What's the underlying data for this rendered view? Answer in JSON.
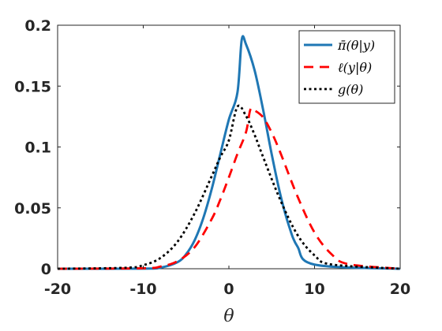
{
  "chart_data": {
    "type": "line",
    "xlabel": "θ",
    "ylabel": "",
    "xlim": [
      -20,
      20
    ],
    "ylim": [
      0,
      0.2
    ],
    "xticks": [
      "-20",
      "-10",
      "0",
      "10",
      "20"
    ],
    "yticks": [
      "0",
      "0.05",
      "0.1",
      "0.15",
      "0.2"
    ],
    "grid": false,
    "legend_position": "top-right",
    "series": [
      {
        "name": "π̄(θ|y)",
        "color": "#1f77b4",
        "style": "solid",
        "x": [
          -20,
          -10,
          -8,
          -6,
          -5,
          -4,
          -3,
          -2,
          -1,
          0,
          1,
          1.5,
          2,
          3,
          4,
          5,
          6,
          7,
          8,
          10,
          20
        ],
        "y": [
          0,
          0.0001,
          0.0009,
          0.0054,
          0.0119,
          0.0234,
          0.0414,
          0.0656,
          0.0943,
          0.1226,
          0.1448,
          0.1881,
          0.1843,
          0.163,
          0.1305,
          0.094,
          0.0611,
          0.0355,
          0.0183,
          0.0034,
          0
        ]
      },
      {
        "name": "ℓ(y|θ)",
        "color": "#ff0000",
        "style": "dashed",
        "x": [
          -20,
          -10,
          -8,
          -6,
          -4,
          -2,
          -1,
          0,
          1,
          2,
          2.5,
          3,
          4,
          5,
          6,
          8,
          10,
          12,
          14,
          20
        ],
        "y": [
          0,
          0.0004,
          0.0018,
          0.0062,
          0.0177,
          0.0409,
          0.0568,
          0.0751,
          0.0944,
          0.1122,
          0.1306,
          0.13,
          0.1243,
          0.1118,
          0.0955,
          0.0596,
          0.0297,
          0.0118,
          0.0037,
          0
        ]
      },
      {
        "name": "g(θ)",
        "color": "#000000",
        "style": "dotted",
        "x": [
          -20,
          -12,
          -10,
          -8,
          -6,
          -4,
          -2,
          -1,
          0,
          1,
          2,
          3,
          4,
          6,
          8,
          10,
          12,
          20
        ],
        "y": [
          0,
          0.0008,
          0.0029,
          0.0088,
          0.0222,
          0.0455,
          0.0761,
          0.0917,
          0.1055,
          0.1331,
          0.1255,
          0.11,
          0.0917,
          0.0565,
          0.0279,
          0.011,
          0.0035,
          0
        ]
      }
    ]
  }
}
